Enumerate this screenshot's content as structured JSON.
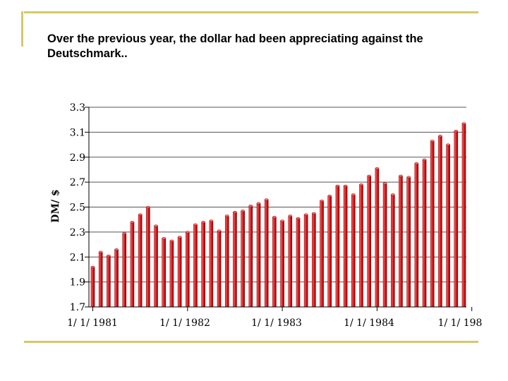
{
  "title": "Over the previous year, the dollar had been appreciating against the Deutschmark..",
  "colors": {
    "accent_rule": "#d4c96a",
    "bar_fill": "#e8262b",
    "bar_dark": "#8b0000",
    "bar_light": "#ff6f6f",
    "grid": "#555555"
  },
  "chart_data": {
    "type": "bar",
    "title": "",
    "xlabel": "",
    "ylabel": "DM/ $",
    "ylim": [
      1.7,
      3.3
    ],
    "yticks": [
      "3.3",
      "3.1",
      "2.9",
      "2.7",
      "2.5",
      "2.3",
      "2.1",
      "1.9",
      "1.7"
    ],
    "xtick_labels": [
      "1/ 1/ 1981",
      "1/ 1/ 1982",
      "1/ 1/ 1983",
      "1/ 1/ 1984",
      "1/ 1/ 198"
    ],
    "xtick_bar_index": [
      0,
      12,
      24,
      36,
      48
    ],
    "grid": true,
    "values": [
      2.02,
      2.14,
      2.11,
      2.16,
      2.29,
      2.38,
      2.44,
      2.5,
      2.35,
      2.25,
      2.23,
      2.26,
      2.3,
      2.36,
      2.38,
      2.39,
      2.31,
      2.43,
      2.46,
      2.47,
      2.51,
      2.53,
      2.56,
      2.42,
      2.39,
      2.43,
      2.41,
      2.44,
      2.45,
      2.55,
      2.59,
      2.67,
      2.67,
      2.6,
      2.68,
      2.75,
      2.81,
      2.69,
      2.6,
      2.75,
      2.74,
      2.85,
      2.88,
      3.03,
      3.07,
      3.0,
      3.11,
      3.17
    ]
  }
}
